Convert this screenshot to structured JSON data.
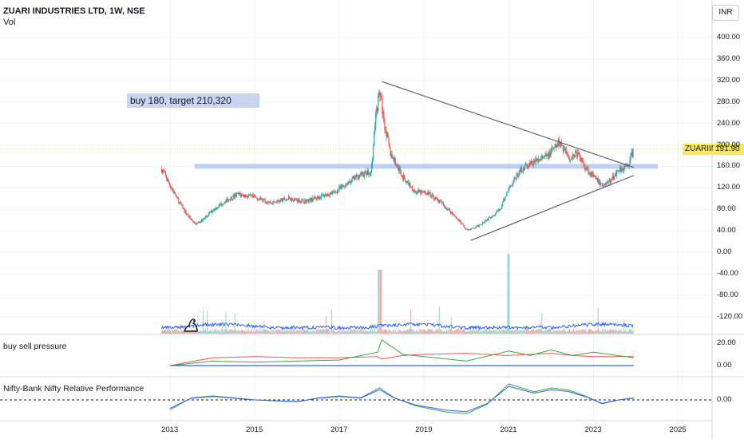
{
  "header": {
    "title": "ZUARI INDUSTRIES LTD, 1W, NSE",
    "volume_label": "Vol",
    "currency": "INR"
  },
  "annotation": {
    "note": "buy 180, target 210,320"
  },
  "price_marker": {
    "symbol": "ZUARIIND",
    "price": "191.90"
  },
  "indicators": {
    "pressure_label": "buy sell pressure",
    "relative_label": "Nifty-Bank Nifty Relative Performance"
  },
  "colors": {
    "up": "#26a69a",
    "down": "#ef5350",
    "blue": "#2962ff",
    "zone": "#bcd0f5",
    "trendline": "#555555",
    "price_line": "#f0d84a"
  },
  "axes": {
    "price_ticks": [
      "400.00",
      "360.00",
      "320.00",
      "280.00",
      "240.00",
      "200.00",
      "160.00",
      "120.00",
      "80.00",
      "40.00",
      "0.00",
      "-40.00",
      "-80.00",
      "-120.00"
    ],
    "pressure_ticks": [
      "20.00",
      "0.00"
    ],
    "relative_ticks": [
      "0.00"
    ],
    "x_ticks": [
      "2013",
      "2015",
      "2017",
      "2019",
      "2021",
      "2023",
      "2025"
    ]
  },
  "chart_data": {
    "type": "line",
    "title": "ZUARI INDUSTRIES LTD, 1W, NSE",
    "ylim": [
      -140,
      420
    ],
    "x_range": [
      2012,
      2025.8
    ],
    "last_price": 191.9,
    "support_resistance_zone": 160,
    "close_series": {
      "x": [
        2012.8,
        2013.0,
        2013.2,
        2013.4,
        2013.6,
        2013.8,
        2014.0,
        2014.3,
        2014.6,
        2015.0,
        2015.4,
        2015.8,
        2016.2,
        2016.6,
        2016.9,
        2017.2,
        2017.5,
        2017.75,
        2017.85,
        2017.95,
        2018.05,
        2018.2,
        2018.5,
        2018.8,
        2019.1,
        2019.4,
        2019.7,
        2020.0,
        2020.2,
        2020.5,
        2020.8,
        2021.0,
        2021.3,
        2021.6,
        2021.9,
        2022.2,
        2022.45,
        2022.6,
        2022.8,
        2023.0,
        2023.2,
        2023.4,
        2023.6,
        2023.8,
        2023.95
      ],
      "y": [
        155,
        125,
        95,
        70,
        52,
        62,
        78,
        95,
        108,
        102,
        92,
        100,
        95,
        105,
        112,
        130,
        145,
        148,
        250,
        300,
        245,
        185,
        140,
        112,
        110,
        92,
        70,
        42,
        45,
        62,
        80,
        120,
        155,
        168,
        178,
        205,
        175,
        185,
        160,
        140,
        125,
        132,
        155,
        160,
        191.9
      ]
    },
    "trendlines": [
      {
        "from": [
          2018.0,
          318
        ],
        "to": [
          2023.95,
          158
        ]
      },
      {
        "from": [
          2020.1,
          22
        ],
        "to": [
          2023.95,
          143
        ]
      }
    ],
    "indicator_buy_sell_pressure": {
      "ylim": [
        -5,
        25
      ],
      "x": [
        2013.0,
        2014.0,
        2015.0,
        2016.0,
        2017.0,
        2017.9,
        2018.0,
        2018.5,
        2019.0,
        2020.0,
        2021.0,
        2021.5,
        2022.0,
        2022.5,
        2023.0,
        2023.95
      ],
      "buy": [
        0,
        4,
        3,
        4,
        5,
        12,
        23,
        10,
        8,
        4,
        13,
        9,
        14,
        9,
        12,
        7
      ],
      "sell": [
        0,
        7,
        8,
        7,
        7,
        8,
        6,
        9,
        10,
        11,
        9,
        10,
        11,
        9,
        8,
        8
      ]
    },
    "indicator_relative_performance": {
      "ylim": [
        -0.5,
        0.5
      ],
      "x": [
        2013.0,
        2013.5,
        2014.0,
        2015.0,
        2016.0,
        2016.5,
        2017.0,
        2017.5,
        2017.95,
        2018.3,
        2018.8,
        2019.5,
        2020.0,
        2020.5,
        2021.0,
        2021.3,
        2021.6,
        2022.0,
        2022.4,
        2022.8,
        2023.2,
        2023.6,
        2023.95
      ],
      "y": [
        -0.25,
        0.05,
        0.1,
        0.0,
        -0.05,
        0.05,
        0.1,
        0.05,
        0.3,
        0.05,
        -0.15,
        -0.3,
        -0.35,
        -0.1,
        0.4,
        0.3,
        0.2,
        0.3,
        0.25,
        0.1,
        -0.1,
        0.0,
        0.05
      ]
    }
  }
}
